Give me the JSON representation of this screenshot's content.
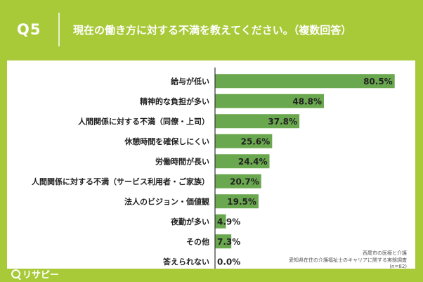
{
  "header": {
    "qnum": "Q5",
    "question": "現在の働き方に対する不満を教えてください。（複数回答）"
  },
  "colors": {
    "background": "#a8c938",
    "bar": "#6aa84f",
    "axis": "#333333"
  },
  "chart_data": {
    "type": "bar",
    "orientation": "horizontal",
    "categories": [
      "給与が低い",
      "精神的な負担が多い",
      "人間関係に対する不満（同僚・上司）",
      "休憩時間を確保しにくい",
      "労働時間が長い",
      "人間関係に対する不満（サービス利用者・ご家族）",
      "法人のビジョン・価値観",
      "夜勤が多い",
      "その他",
      "答えられない"
    ],
    "values": [
      80.5,
      48.8,
      37.8,
      25.6,
      24.4,
      20.7,
      19.5,
      4.9,
      7.3,
      0.0
    ],
    "value_labels": [
      "80.5%",
      "48.8%",
      "37.8%",
      "25.6%",
      "24.4%",
      "20.7%",
      "19.5%",
      "4.9%",
      "7.3%",
      "0.0%"
    ],
    "xlim": [
      0,
      85
    ],
    "grid": false
  },
  "source": {
    "line1": "西尾市の医療と介護",
    "line2": "愛知県在住の介護福祉士のキャリアに関する実態調査",
    "line3": "(n=82)"
  },
  "logo": {
    "icon": "magnifier-icon",
    "text": "リサピー"
  }
}
